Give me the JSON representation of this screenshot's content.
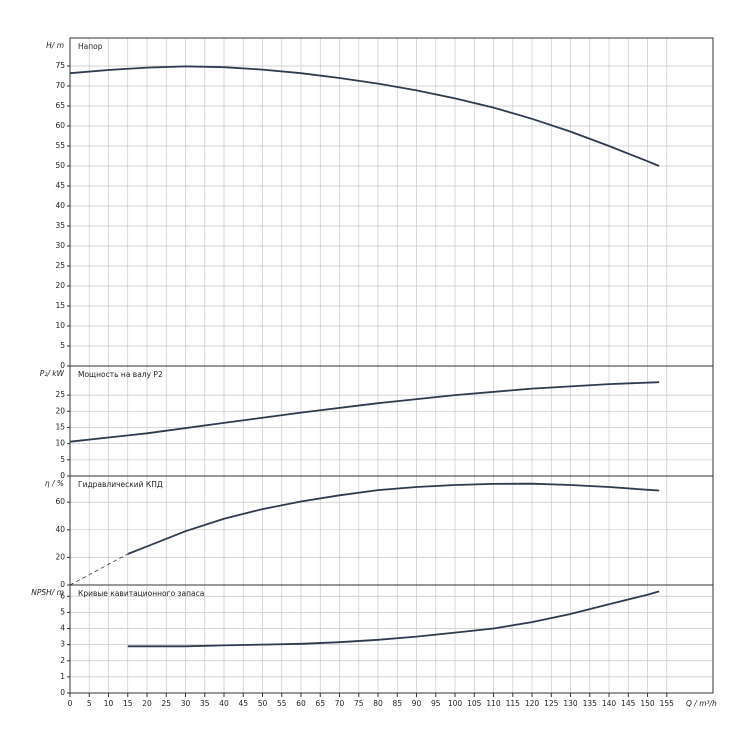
{
  "chart_data": [
    {
      "type": "line",
      "ylabel": "H/ m",
      "title": "Напор",
      "x": [
        0,
        10,
        20,
        30,
        40,
        50,
        60,
        70,
        80,
        90,
        100,
        110,
        120,
        130,
        140,
        150,
        153
      ],
      "series": [
        {
          "color": "#2e3b4e",
          "style": "solid",
          "values": [
            73.2,
            74,
            74.6,
            74.9,
            74.7,
            74.1,
            73.2,
            72,
            70.6,
            68.9,
            66.9,
            64.6,
            61.8,
            58.6,
            55,
            51.2,
            50
          ]
        }
      ],
      "ylim": [
        0,
        82
      ],
      "yticks": [
        0,
        5,
        10,
        15,
        20,
        25,
        30,
        35,
        40,
        45,
        50,
        55,
        60,
        65,
        70,
        75
      ],
      "grid": true
    },
    {
      "type": "line",
      "ylabel": "P₂/ kW",
      "title": "Мощность на валу P2",
      "x": [
        0,
        20,
        40,
        60,
        80,
        100,
        120,
        140,
        153
      ],
      "series": [
        {
          "color": "#2e3b4e",
          "style": "solid",
          "values": [
            10.6,
            13.2,
            16.4,
            19.6,
            22.5,
            25,
            27,
            28.4,
            29
          ]
        }
      ],
      "ylim": [
        0,
        34
      ],
      "yticks": [
        0,
        5,
        10,
        15,
        20,
        25
      ],
      "grid": true
    },
    {
      "type": "line",
      "ylabel": "η / %",
      "title": "Гидравлический КПД",
      "x": [
        0,
        15,
        20,
        30,
        40,
        50,
        60,
        70,
        80,
        90,
        100,
        110,
        120,
        130,
        140,
        150,
        153
      ],
      "series": [
        {
          "color": "#2e3b4e",
          "style": "solid",
          "values": [
            null,
            22.5,
            28,
            39,
            48,
            55,
            60.5,
            65,
            68.8,
            71,
            72.5,
            73.3,
            73.4,
            72.5,
            71,
            69,
            68.5
          ]
        },
        {
          "color": "#2e3b4e",
          "style": "dashed",
          "values": [
            0,
            22.5,
            null,
            null,
            null,
            null,
            null,
            null,
            null,
            null,
            null,
            null,
            null,
            null,
            null,
            null,
            null
          ]
        }
      ],
      "ylim": [
        0,
        79
      ],
      "yticks": [
        0,
        20,
        40,
        60
      ],
      "grid": true
    },
    {
      "type": "line",
      "ylabel": "NPSH/ m",
      "title": "Кривые кавитационного запаса",
      "xlabel": "Q / m³/h",
      "x": [
        15,
        30,
        40,
        50,
        60,
        70,
        80,
        90,
        100,
        110,
        120,
        130,
        140,
        150,
        153
      ],
      "series": [
        {
          "color": "#2e3b4e",
          "style": "solid",
          "values": [
            2.9,
            2.9,
            2.95,
            3,
            3.05,
            3.15,
            3.3,
            3.5,
            3.75,
            4,
            4.4,
            4.9,
            5.5,
            6.1,
            6.3
          ]
        }
      ],
      "ylim": [
        0,
        6.7
      ],
      "yticks": [
        0,
        1,
        2,
        3,
        4,
        5,
        6
      ],
      "grid": true,
      "xlim": [
        0,
        167
      ],
      "xticks": [
        0,
        5,
        10,
        15,
        20,
        25,
        30,
        35,
        40,
        45,
        50,
        55,
        60,
        65,
        70,
        75,
        80,
        85,
        90,
        95,
        100,
        105,
        110,
        115,
        120,
        125,
        130,
        135,
        140,
        145,
        150,
        155
      ]
    }
  ]
}
